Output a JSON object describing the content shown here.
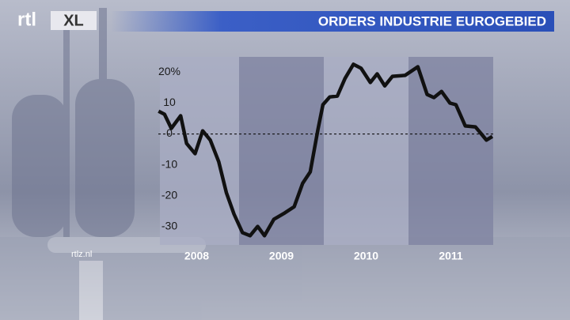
{
  "chart_data": {
    "type": "line",
    "title": "ORDERS INDUSTRIE EUROGEBIED",
    "logo": "rtl",
    "logo_badge": "XL",
    "source": "rtlz.nl",
    "x": [
      2008.05,
      2008.12,
      2008.2,
      2008.31,
      2008.38,
      2008.48,
      2008.57,
      2008.66,
      2008.76,
      2008.85,
      2008.94,
      2009.04,
      2009.13,
      2009.22,
      2009.3,
      2009.41,
      2009.54,
      2009.65,
      2009.75,
      2009.84,
      2009.93,
      2009.99,
      2010.07,
      2010.16,
      2010.25,
      2010.35,
      2010.44,
      2010.55,
      2010.63,
      2010.72,
      2010.81,
      2010.96,
      2011.11,
      2011.22,
      2011.3,
      2011.39,
      2011.49,
      2011.56,
      2011.67,
      2011.79,
      2011.86,
      2011.92,
      2011.99
    ],
    "series": [
      {
        "color": "#111111",
        "values": [
          7.4,
          6.4,
          1.8,
          5.9,
          -3.1,
          -6.4,
          1,
          -2,
          -9,
          -19,
          -26,
          -32,
          -33,
          -30,
          -33,
          -27.7,
          -25.6,
          -23.6,
          -16,
          -12.3,
          1.3,
          9.5,
          12,
          12.3,
          18,
          22.6,
          21.3,
          16.7,
          19.5,
          15.6,
          18.7,
          19,
          21.8,
          12.8,
          11.8,
          13.8,
          10,
          9.5,
          2.6,
          2.3,
          0,
          -2,
          -0.8
        ]
      }
    ],
    "xlim": [
      2008,
      2012
    ],
    "xticks": [
      {
        "value": 2008.5,
        "label": "2008"
      },
      {
        "value": 2009.5,
        "label": "2009"
      },
      {
        "value": 2010.5,
        "label": "2010"
      },
      {
        "value": 2011.5,
        "label": "2011"
      }
    ],
    "ylim": [
      -36,
      25
    ],
    "yticks": [
      {
        "value": 20,
        "label": "20%"
      },
      10,
      0,
      -10,
      -20,
      -30
    ],
    "reference_line": 0
  }
}
